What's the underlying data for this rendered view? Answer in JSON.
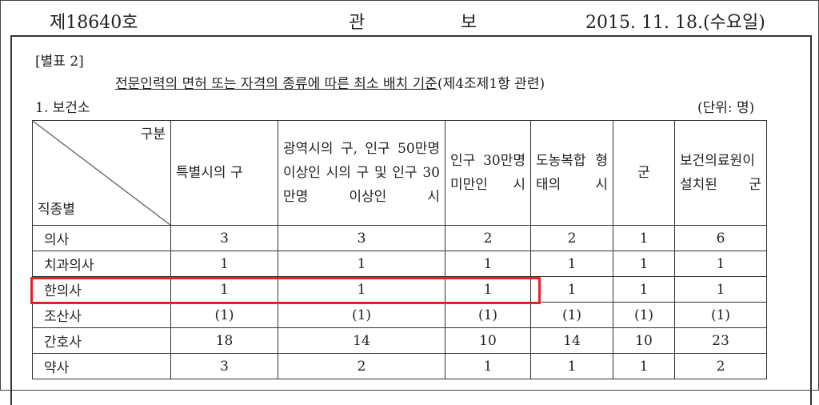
{
  "header": {
    "issue": "제18640호",
    "title_left": "관",
    "title_right": "보",
    "date": "2015. 11. 18.(수요일)"
  },
  "doc": {
    "annex": "[별표 2]",
    "title_underlined": "전문인력의 면허 또는 자격의 종류에 따른 최소 배치 기준",
    "title_suffix": "(제4조제1항 관련)",
    "section": "1. 보건소",
    "unit": "(단위: 명)"
  },
  "table": {
    "corner_top": "구분",
    "corner_bottom": "직종별",
    "columns": [
      "특별시의 구",
      "광역시의 구, 인구 50만명 이상인 시의 구 및 인구 30만명 이상인 시",
      "인구 30만명 미만인 시",
      "도농복합 형태의 시",
      "군",
      "보건의료원이 설치된 군"
    ],
    "rows": [
      {
        "name": "의사",
        "values": [
          "3",
          "3",
          "2",
          "2",
          "1",
          "6"
        ]
      },
      {
        "name": "치과의사",
        "values": [
          "1",
          "1",
          "1",
          "1",
          "1",
          "1"
        ]
      },
      {
        "name": "한의사",
        "values": [
          "1",
          "1",
          "1",
          "1",
          "1",
          "1"
        ],
        "highlighted": true
      },
      {
        "name": "조산사",
        "values": [
          "(1)",
          "(1)",
          "(1)",
          "(1)",
          "(1)",
          "(1)"
        ]
      },
      {
        "name": "간호사",
        "values": [
          "18",
          "14",
          "10",
          "14",
          "10",
          "23"
        ]
      },
      {
        "name": "약사",
        "values": [
          "3",
          "2",
          "1",
          "1",
          "1",
          "2"
        ]
      }
    ]
  },
  "colors": {
    "highlight": "#e0242c"
  }
}
